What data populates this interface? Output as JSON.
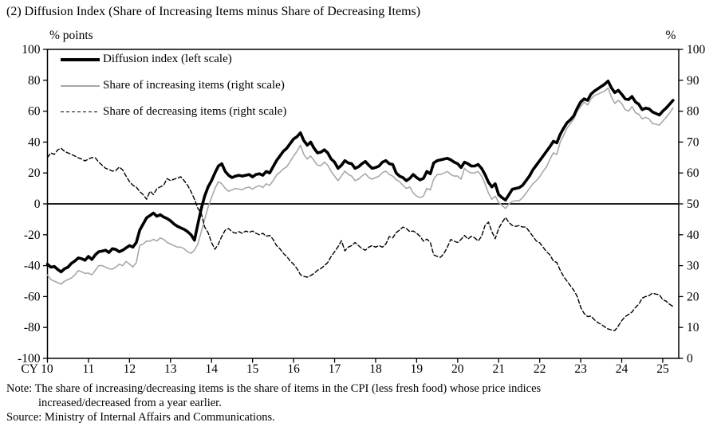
{
  "title": "(2) Diffusion Index (Share of Increasing Items minus Share of Decreasing Items)",
  "legend": [
    "Diffusion index (left scale)",
    "Share of increasing items (right scale)",
    "Share of decreasing items (right scale)"
  ],
  "notes": {
    "line1": "Note: The share of increasing/decreasing items is the share of items in the CPI (less fresh food) whose price indices",
    "line2": "increased/decreased from a year earlier.",
    "source": "Source: Ministry of Internal Affairs and Communications."
  },
  "colors": {
    "ink": "#000000",
    "gray_line": "#a8a8a8"
  },
  "chart_data": {
    "type": "line",
    "title": "(2) Diffusion Index (Share of Increasing Items minus Share of Decreasing Items)",
    "x_start_year": 2010,
    "x_step_months": 1,
    "x_tick_years": [
      2010,
      2011,
      2012,
      2013,
      2014,
      2015,
      2016,
      2017,
      2018,
      2019,
      2020,
      2021,
      2022,
      2023,
      2024,
      2025
    ],
    "x_tick_labels": [
      "CY 10",
      "11",
      "12",
      "13",
      "14",
      "15",
      "16",
      "17",
      "18",
      "19",
      "20",
      "21",
      "22",
      "23",
      "24",
      "25"
    ],
    "left_axis": {
      "label": "% points",
      "min": -100,
      "max": 100,
      "ticks": [
        100,
        80,
        60,
        40,
        20,
        0,
        -20,
        -40,
        -60,
        -80,
        -100
      ]
    },
    "right_axis": {
      "label": "%",
      "min": 0,
      "max": 100,
      "ticks": [
        100,
        90,
        80,
        70,
        60,
        50,
        40,
        30,
        20,
        10,
        0
      ]
    },
    "series": [
      {
        "id": "increasing-line",
        "name": "Share of increasing items (right scale)",
        "scale": "right",
        "color": "#a8a8a8",
        "width": 1.6,
        "dash": null,
        "values": [
          27,
          25.5,
          25,
          24.5,
          24,
          25,
          25.5,
          26,
          27,
          28.4,
          28,
          27.5,
          27.6,
          27,
          28.5,
          30,
          30,
          29.5,
          29,
          28.9,
          29.5,
          30.5,
          30,
          31.4,
          30.5,
          29.6,
          31,
          36.6,
          37,
          38,
          37.9,
          38.5,
          38,
          39,
          38.5,
          37.5,
          37,
          36.5,
          36,
          36,
          35.5,
          34.5,
          34,
          35,
          37,
          41,
          45,
          49,
          52,
          55,
          57.2,
          56.5,
          55,
          54.1,
          54.5,
          55,
          54.8,
          54.6,
          55.2,
          55.4,
          54.8,
          55.5,
          55.9,
          55.3,
          56.5,
          56,
          57.5,
          59.3,
          60.2,
          61.3,
          62,
          63.7,
          65.5,
          67,
          69,
          66,
          64.5,
          65.5,
          64,
          62.5,
          62.4,
          63.5,
          62.5,
          60.5,
          59,
          57.5,
          59,
          60.6,
          59.5,
          59,
          57.5,
          58,
          59,
          59.8,
          58.5,
          58,
          58.5,
          59,
          60.1,
          60.6,
          59.5,
          59,
          57.8,
          57.2,
          56,
          55,
          55.5,
          53.5,
          52.5,
          52,
          52.5,
          55,
          54.5,
          58,
          59.5,
          59.5,
          60,
          60.5,
          59.5,
          59,
          59,
          58,
          61.5,
          60.5,
          60,
          60,
          60.5,
          59,
          56.5,
          53.5,
          51.5,
          52.5,
          50.5,
          49.5,
          48.5,
          50,
          50.8,
          51,
          51,
          52,
          53.4,
          55,
          56.5,
          57.5,
          58.8,
          60.5,
          62,
          64.4,
          66.5,
          66,
          70,
          72.2,
          74.5,
          76,
          77.5,
          80,
          81.5,
          83,
          82,
          84,
          85,
          85.5,
          86,
          86.5,
          87.5,
          84.5,
          82.5,
          83.5,
          82.5,
          80.5,
          80,
          81.5,
          79.5,
          79,
          77.5,
          78,
          77.5,
          76,
          75.8,
          75.5,
          76.8,
          78,
          79.4,
          81
        ]
      },
      {
        "id": "decreasing-line",
        "name": "Share of decreasing items (right scale)",
        "scale": "right",
        "color": "#000000",
        "width": 1.4,
        "dash": "5 3",
        "values": [
          65,
          66.5,
          66,
          67.5,
          68,
          67,
          66.5,
          66,
          65.5,
          64.9,
          64.5,
          63.9,
          64.5,
          65,
          64.9,
          63.5,
          62.5,
          61.5,
          61.1,
          60.6,
          60.8,
          61.9,
          61,
          59,
          57.2,
          56,
          55.4,
          54,
          53,
          51.5,
          54.1,
          53,
          54.9,
          55.5,
          56,
          58.2,
          57.5,
          58,
          58.3,
          58.8,
          57.5,
          56,
          54,
          51.5,
          48.5,
          46.9,
          42.5,
          40.7,
          37.5,
          35.3,
          37,
          39.5,
          41.5,
          42,
          41,
          40.5,
          41,
          40.5,
          41.2,
          40.8,
          41.2,
          40.5,
          40,
          40.5,
          39.5,
          39.8,
          38.5,
          36.5,
          35.5,
          34,
          33,
          31.5,
          30.5,
          29,
          27.1,
          26.5,
          26.3,
          26.8,
          27.5,
          28.5,
          29.1,
          30,
          31,
          33,
          34.5,
          36.1,
          38.1,
          34.8,
          36,
          36.5,
          37.5,
          36.5,
          35.5,
          35,
          36,
          36.5,
          36,
          36.5,
          36,
          37,
          39.4,
          39,
          40.7,
          41.5,
          42.5,
          42,
          41,
          41.2,
          40.5,
          39.5,
          37.9,
          38.6,
          37.5,
          33.5,
          33,
          32.7,
          34,
          36,
          38.5,
          37.9,
          37.5,
          38.5,
          39.8,
          38.6,
          39.5,
          39,
          38,
          39.5,
          43,
          44.1,
          41,
          38.7,
          42,
          44,
          45.6,
          44,
          43,
          42.7,
          43,
          42.5,
          42.5,
          41,
          39.5,
          38,
          37.4,
          36,
          34.5,
          33.5,
          31.5,
          31,
          28.5,
          26.5,
          25,
          23.5,
          22,
          20,
          16.5,
          14.5,
          13.5,
          13.7,
          12.5,
          11.6,
          11,
          10.2,
          9.5,
          9.2,
          9,
          10.5,
          12.2,
          13.5,
          14.2,
          15,
          16.5,
          17.5,
          19.5,
          20,
          20.3,
          21.1,
          20.8,
          20.6,
          19,
          18.5,
          17.5,
          16.8
        ]
      },
      {
        "id": "diffusion-line",
        "name": "Diffusion index (left scale)",
        "scale": "left",
        "color": "#000000",
        "width": 3.6,
        "dash": null,
        "values": [
          -39,
          -41,
          -40.5,
          -42.5,
          -44,
          -42,
          -41,
          -38.5,
          -37,
          -35,
          -35.5,
          -36.5,
          -34,
          -36,
          -33,
          -31,
          -30.5,
          -30,
          -31.5,
          -29,
          -29.5,
          -31,
          -30,
          -28.5,
          -27,
          -28,
          -25,
          -17,
          -13,
          -9,
          -7.5,
          -6,
          -8,
          -7,
          -8.5,
          -9.5,
          -11,
          -13,
          -14.5,
          -15.5,
          -16.5,
          -18,
          -20,
          -23.5,
          -13,
          -3,
          5,
          11,
          15,
          20,
          24.5,
          26,
          21,
          18.5,
          17,
          18,
          18.5,
          18,
          18.5,
          19,
          17.5,
          19,
          19.5,
          18.5,
          21,
          20,
          24,
          28,
          31,
          34,
          36,
          39,
          42,
          43.5,
          46,
          41,
          38,
          40,
          36,
          33,
          33.5,
          35,
          33,
          29,
          27,
          23,
          25,
          28,
          26.5,
          26,
          23,
          24,
          26,
          27.5,
          25,
          23,
          23.5,
          24.5,
          27,
          28,
          26,
          25.5,
          20,
          18,
          17,
          15,
          16.5,
          19,
          17,
          15.5,
          16.5,
          21,
          19.5,
          26.5,
          28,
          28.5,
          29,
          29.5,
          28.5,
          27,
          26,
          23.5,
          27,
          26,
          24.5,
          24.5,
          25.5,
          23,
          19,
          14,
          11,
          13,
          6,
          4,
          2.5,
          6,
          9.5,
          10,
          10.5,
          12,
          15,
          18,
          22,
          25,
          28,
          31,
          34,
          37,
          40.5,
          39.5,
          45,
          49,
          52.5,
          54.5,
          57,
          62,
          66,
          68,
          67,
          71,
          73,
          74.5,
          76,
          77.5,
          79.5,
          75,
          72,
          73.5,
          71,
          68,
          67.5,
          69.5,
          66,
          64.5,
          61,
          62,
          61.5,
          59.5,
          58.5,
          57.5,
          60,
          62,
          64.5,
          67
        ]
      }
    ]
  }
}
